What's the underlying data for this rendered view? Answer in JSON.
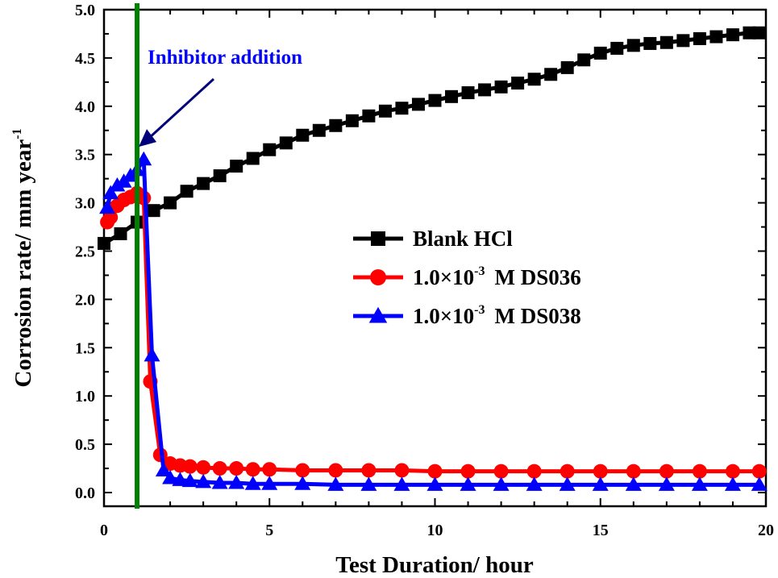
{
  "chart_data": {
    "type": "line",
    "title": "",
    "xlabel": "Test Duration/ hour",
    "ylabel": {
      "base": "Corrosion rate/ mm year",
      "sup": "-1"
    },
    "xlim": [
      0,
      20
    ],
    "ylim": [
      0,
      5.0
    ],
    "xticks": [
      "0",
      "5",
      "10",
      "15",
      "20"
    ],
    "yticks": [
      "0.0",
      "0.5",
      "1.0",
      "1.5",
      "2.0",
      "2.5",
      "3.0",
      "3.5",
      "4.0",
      "4.5",
      "5.0"
    ],
    "legend_position": "center-right",
    "series": [
      {
        "name": "Blank HCl",
        "label_parts": [
          "Blank HCl",
          "",
          ""
        ],
        "color": "#000000",
        "marker": "square",
        "x": [
          0,
          0.5,
          1,
          1.5,
          2,
          2.5,
          3,
          3.5,
          4,
          4.5,
          5,
          5.5,
          6,
          6.5,
          7,
          7.5,
          8,
          8.5,
          9,
          9.5,
          10,
          10.5,
          11,
          11.5,
          12,
          12.5,
          13,
          13.5,
          14,
          14.5,
          15,
          15.5,
          16,
          16.5,
          17,
          17.5,
          18,
          18.5,
          19,
          19.5,
          19.8
        ],
        "y": [
          2.58,
          2.68,
          2.8,
          2.92,
          3.0,
          3.12,
          3.2,
          3.28,
          3.38,
          3.46,
          3.55,
          3.62,
          3.7,
          3.75,
          3.8,
          3.85,
          3.9,
          3.95,
          3.98,
          4.02,
          4.06,
          4.1,
          4.14,
          4.17,
          4.2,
          4.24,
          4.28,
          4.33,
          4.4,
          4.48,
          4.55,
          4.6,
          4.63,
          4.65,
          4.66,
          4.68,
          4.7,
          4.72,
          4.74,
          4.76,
          4.76
        ]
      },
      {
        "name": "1.0×10-3 M DS036",
        "label_parts": [
          "1.0×10",
          "-3",
          "M DS036"
        ],
        "color": "#ff0000",
        "marker": "circle",
        "x": [
          0.1,
          0.2,
          0.4,
          0.6,
          0.8,
          1.0,
          1.2,
          1.4,
          1.7,
          2.0,
          2.3,
          2.6,
          3.0,
          3.5,
          4.0,
          4.5,
          5,
          6,
          7,
          8,
          9,
          10,
          11,
          12,
          13,
          14,
          15,
          16,
          17,
          18,
          19,
          19.8
        ],
        "y": [
          2.8,
          2.85,
          2.97,
          3.03,
          3.06,
          3.1,
          3.05,
          1.15,
          0.39,
          0.3,
          0.28,
          0.27,
          0.26,
          0.25,
          0.25,
          0.24,
          0.24,
          0.23,
          0.23,
          0.23,
          0.23,
          0.22,
          0.22,
          0.22,
          0.22,
          0.22,
          0.22,
          0.22,
          0.22,
          0.22,
          0.22,
          0.22
        ]
      },
      {
        "name": "1.0×10-3 M DS038",
        "label_parts": [
          "1.0×10",
          "-3",
          "M DS038"
        ],
        "color": "#0000ff",
        "marker": "triangle",
        "x": [
          0.1,
          0.2,
          0.4,
          0.6,
          0.8,
          1.0,
          1.2,
          1.45,
          1.8,
          2.0,
          2.3,
          2.6,
          3.0,
          3.5,
          4.0,
          4.5,
          5,
          6,
          7,
          8,
          9,
          10,
          11,
          12,
          13,
          14,
          15,
          16,
          17,
          18,
          19,
          19.8
        ],
        "y": [
          2.95,
          3.1,
          3.18,
          3.22,
          3.28,
          3.34,
          3.45,
          1.42,
          0.23,
          0.15,
          0.13,
          0.12,
          0.11,
          0.1,
          0.1,
          0.09,
          0.09,
          0.09,
          0.08,
          0.08,
          0.08,
          0.08,
          0.08,
          0.08,
          0.08,
          0.08,
          0.08,
          0.08,
          0.08,
          0.08,
          0.08,
          0.08
        ]
      }
    ],
    "vline": {
      "x": 1.0,
      "color": "#008000"
    },
    "annotation": {
      "text": "Inhibitor addition",
      "color": "#0000ff",
      "arrow_color": "#00007a"
    }
  }
}
